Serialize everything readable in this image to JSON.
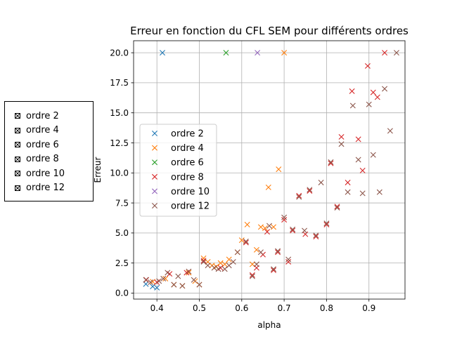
{
  "chart_data": {
    "type": "scatter",
    "title": "Erreur en fonction du CFL SEM pour différents ordres",
    "xlabel": "alpha",
    "ylabel": "Erreur",
    "xlim": [
      0.345,
      0.985
    ],
    "ylim": [
      -0.5,
      21.0
    ],
    "xticks": [
      0.4,
      0.5,
      0.6,
      0.7,
      0.8,
      0.9
    ],
    "xtick_labels": [
      "0.4",
      "0.5",
      "0.6",
      "0.7",
      "0.8",
      "0.9"
    ],
    "yticks": [
      0.0,
      2.5,
      5.0,
      7.5,
      10.0,
      12.5,
      15.0,
      17.5,
      20.0
    ],
    "ytick_labels": [
      "0.0",
      "2.5",
      "5.0",
      "7.5",
      "10.0",
      "12.5",
      "15.0",
      "17.5",
      "20.0"
    ],
    "grid": true,
    "legend_position": "center-left",
    "series": [
      {
        "name": "ordre 2",
        "color": "#1f77b4",
        "points": [
          [
            0.374,
            0.75
          ],
          [
            0.39,
            0.55
          ],
          [
            0.4,
            0.45
          ],
          [
            0.413,
            20.0
          ]
        ]
      },
      {
        "name": "ordre 4",
        "color": "#ff7f0e",
        "points": [
          [
            0.39,
            0.95
          ],
          [
            0.42,
            1.2
          ],
          [
            0.44,
            0.7
          ],
          [
            0.46,
            0.6
          ],
          [
            0.475,
            1.7
          ],
          [
            0.49,
            1.0
          ],
          [
            0.5,
            0.7
          ],
          [
            0.51,
            2.9
          ],
          [
            0.52,
            2.6
          ],
          [
            0.53,
            2.3
          ],
          [
            0.54,
            2.2
          ],
          [
            0.55,
            2.5
          ],
          [
            0.56,
            2.4
          ],
          [
            0.57,
            2.8
          ],
          [
            0.59,
            3.4
          ],
          [
            0.6,
            4.4
          ],
          [
            0.613,
            5.7
          ],
          [
            0.625,
            2.4
          ],
          [
            0.635,
            3.6
          ],
          [
            0.645,
            5.5
          ],
          [
            0.655,
            5.4
          ],
          [
            0.663,
            8.8
          ],
          [
            0.675,
            5.5
          ],
          [
            0.687,
            10.3
          ],
          [
            0.7,
            20.0
          ]
        ]
      },
      {
        "name": "ordre 6",
        "color": "#2ca02c",
        "points": [
          [
            0.563,
            20.0
          ]
        ]
      },
      {
        "name": "ordre 8",
        "color": "#d62728",
        "points": [
          [
            0.375,
            1.1
          ],
          [
            0.4,
            0.9
          ],
          [
            0.43,
            1.6
          ],
          [
            0.47,
            1.7
          ],
          [
            0.51,
            2.7
          ],
          [
            0.55,
            2.1
          ],
          [
            0.61,
            4.2
          ],
          [
            0.625,
            1.5
          ],
          [
            0.635,
            2.1
          ],
          [
            0.65,
            3.2
          ],
          [
            0.66,
            5.1
          ],
          [
            0.675,
            1.9
          ],
          [
            0.685,
            3.4
          ],
          [
            0.7,
            6.1
          ],
          [
            0.71,
            2.6
          ],
          [
            0.72,
            5.2
          ],
          [
            0.735,
            8.1
          ],
          [
            0.75,
            4.9
          ],
          [
            0.76,
            8.5
          ],
          [
            0.775,
            4.7
          ],
          [
            0.8,
            5.7
          ],
          [
            0.81,
            10.8
          ],
          [
            0.825,
            7.2
          ],
          [
            0.835,
            13.0
          ],
          [
            0.85,
            9.2
          ],
          [
            0.86,
            16.8
          ],
          [
            0.875,
            12.8
          ],
          [
            0.885,
            10.2
          ],
          [
            0.897,
            18.9
          ],
          [
            0.91,
            16.7
          ],
          [
            0.92,
            16.3
          ],
          [
            0.937,
            20.0
          ]
        ]
      },
      {
        "name": "ordre 10",
        "color": "#9467bd",
        "points": [
          [
            0.637,
            20.0
          ]
        ]
      },
      {
        "name": "ordre 12",
        "color": "#8c564b",
        "points": [
          [
            0.374,
            1.1
          ],
          [
            0.385,
            0.9
          ],
          [
            0.405,
            1.0
          ],
          [
            0.415,
            1.2
          ],
          [
            0.425,
            1.7
          ],
          [
            0.44,
            0.7
          ],
          [
            0.45,
            1.4
          ],
          [
            0.46,
            0.6
          ],
          [
            0.475,
            1.8
          ],
          [
            0.487,
            1.1
          ],
          [
            0.5,
            0.7
          ],
          [
            0.51,
            2.6
          ],
          [
            0.52,
            2.3
          ],
          [
            0.535,
            2.1
          ],
          [
            0.545,
            2.0
          ],
          [
            0.56,
            2.0
          ],
          [
            0.57,
            2.3
          ],
          [
            0.58,
            2.6
          ],
          [
            0.59,
            3.4
          ],
          [
            0.61,
            4.3
          ],
          [
            0.625,
            1.4
          ],
          [
            0.635,
            2.4
          ],
          [
            0.645,
            3.4
          ],
          [
            0.665,
            5.6
          ],
          [
            0.675,
            2.0
          ],
          [
            0.685,
            3.5
          ],
          [
            0.7,
            6.3
          ],
          [
            0.71,
            2.8
          ],
          [
            0.72,
            5.3
          ],
          [
            0.735,
            8.0
          ],
          [
            0.748,
            5.2
          ],
          [
            0.76,
            8.6
          ],
          [
            0.775,
            4.8
          ],
          [
            0.787,
            9.2
          ],
          [
            0.8,
            5.8
          ],
          [
            0.81,
            10.9
          ],
          [
            0.825,
            7.1
          ],
          [
            0.835,
            12.4
          ],
          [
            0.85,
            8.4
          ],
          [
            0.862,
            15.6
          ],
          [
            0.875,
            11.1
          ],
          [
            0.885,
            8.3
          ],
          [
            0.9,
            15.7
          ],
          [
            0.91,
            11.5
          ],
          [
            0.925,
            8.4
          ],
          [
            0.937,
            17.0
          ],
          [
            0.95,
            13.5
          ],
          [
            0.965,
            20.0
          ]
        ]
      }
    ]
  },
  "external_legend": {
    "items": [
      "ordre 2",
      "ordre 4",
      "ordre 6",
      "ordre 8",
      "ordre 10",
      "ordre 12"
    ]
  }
}
